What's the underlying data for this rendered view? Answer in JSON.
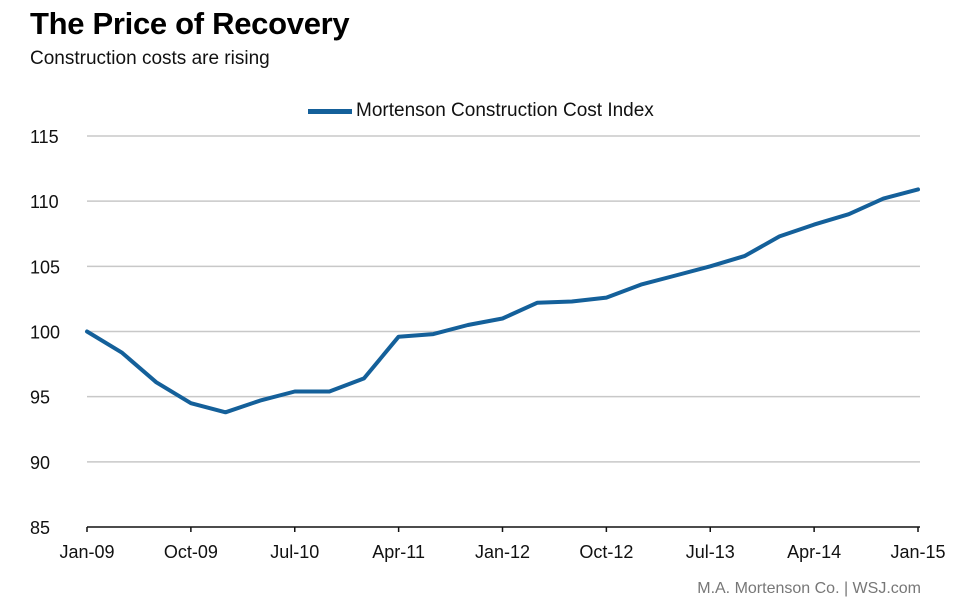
{
  "chart_data": {
    "type": "line",
    "title": "The Price of Recovery",
    "subtitle": "Construction costs are rising",
    "source": "M.A. Mortenson Co.  |  WSJ.com",
    "xlabel": "",
    "ylabel": "",
    "ylim": [
      85,
      115
    ],
    "yticks": [
      85,
      90,
      95,
      100,
      105,
      110,
      115
    ],
    "grid": true,
    "legend_position": "top-center",
    "x_tick_labels": [
      "Jan-09",
      "Oct-09",
      "Jul-10",
      "Apr-11",
      "Jan-12",
      "Oct-12",
      "Jul-13",
      "Apr-14",
      "Jan-15"
    ],
    "x": [
      "Jan-09",
      "Apr-09",
      "Jul-09",
      "Oct-09",
      "Jan-10",
      "Apr-10",
      "Jul-10",
      "Oct-10",
      "Jan-11",
      "Apr-11",
      "Jul-11",
      "Oct-11",
      "Jan-12",
      "Apr-12",
      "Jul-12",
      "Oct-12",
      "Jan-13",
      "Apr-13",
      "Jul-13",
      "Oct-13",
      "Jan-14",
      "Apr-14",
      "Jul-14",
      "Oct-14",
      "Jan-15"
    ],
    "series": [
      {
        "name": "Mortenson Construction Cost Index",
        "color": "#14609a",
        "values": [
          100.0,
          98.4,
          96.1,
          94.5,
          93.8,
          94.7,
          95.4,
          95.4,
          96.4,
          99.6,
          99.8,
          100.5,
          101.0,
          102.2,
          102.3,
          102.6,
          103.6,
          104.3,
          105.0,
          105.8,
          107.3,
          108.2,
          109.0,
          110.2,
          110.9
        ]
      }
    ]
  }
}
